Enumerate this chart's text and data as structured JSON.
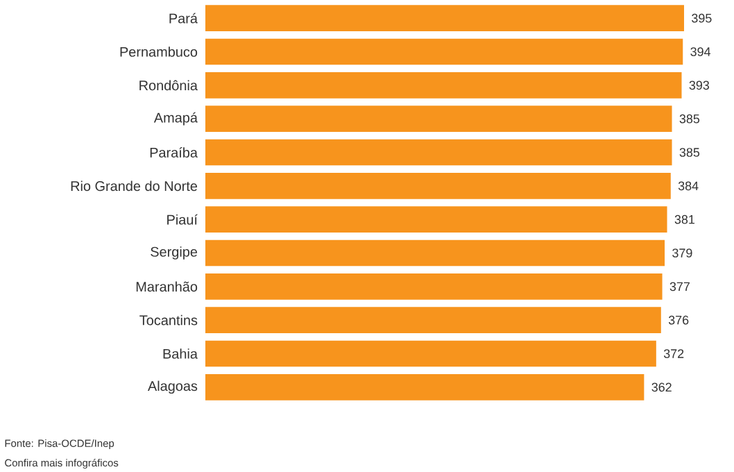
{
  "chart_data": {
    "type": "bar",
    "orientation": "horizontal",
    "categories": [
      "Pará",
      "Pernambuco",
      "Rondônia",
      "Amapá",
      "Paraíba",
      "Rio Grande do Norte",
      "Piauí",
      "Sergipe",
      "Maranhão",
      "Tocantins",
      "Bahia",
      "Alagoas"
    ],
    "values": [
      395,
      394,
      393,
      385,
      385,
      384,
      381,
      379,
      377,
      376,
      372,
      362
    ],
    "color": "#f7941d",
    "data_labels": true,
    "annotations": [
      "Fonte: Pisa-OCDE/Inep",
      "Confira mais infográficos"
    ]
  }
}
